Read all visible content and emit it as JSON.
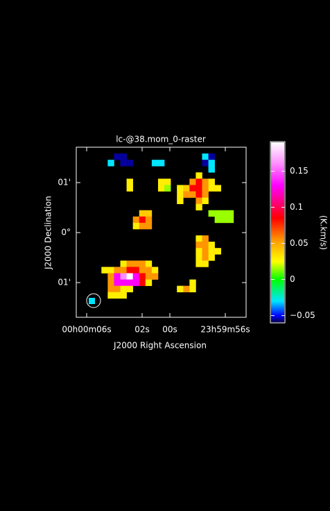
{
  "chart_data": {
    "type": "heatmap",
    "title": "lc-@38.mom_0-raster",
    "x_label": "J2000 Right Ascension",
    "y_label": "J2000 Declination",
    "xlim": [
      66.75,
      54.5
    ],
    "ylim": [
      -1.694,
      1.708
    ],
    "xticks": [
      {
        "value": 66,
        "label": "00h00m06s"
      },
      {
        "value": 62,
        "label": "02s"
      },
      {
        "value": 60,
        "label": "00s"
      },
      {
        "value": 56,
        "label": "23h59m56s"
      }
    ],
    "yticks": [
      {
        "value": 1,
        "label": "01'"
      },
      {
        "value": 0,
        "label": "0°"
      },
      {
        "value": -1,
        "label": "01'"
      }
    ],
    "z": [
      [
        null,
        null,
        null,
        null,
        null,
        null,
        null,
        null,
        null,
        null,
        null,
        null,
        null,
        null,
        null,
        null,
        null,
        null,
        null,
        null,
        null,
        null,
        null,
        null,
        null,
        null,
        null
      ],
      [
        null,
        null,
        null,
        null,
        null,
        null,
        -0.055,
        -0.055,
        null,
        null,
        null,
        null,
        null,
        null,
        null,
        null,
        null,
        null,
        null,
        null,
        -0.03,
        -0.055,
        null,
        null,
        null,
        null,
        null
      ],
      [
        null,
        null,
        null,
        null,
        null,
        -0.03,
        null,
        -0.055,
        -0.055,
        null,
        null,
        null,
        -0.03,
        -0.03,
        null,
        null,
        null,
        null,
        null,
        null,
        -0.055,
        -0.03,
        null,
        null,
        null,
        null,
        null
      ],
      [
        null,
        null,
        null,
        null,
        null,
        null,
        null,
        null,
        null,
        null,
        null,
        null,
        null,
        null,
        null,
        null,
        null,
        null,
        null,
        null,
        null,
        -0.03,
        null,
        null,
        null,
        null,
        null
      ],
      [
        null,
        null,
        null,
        null,
        null,
        null,
        null,
        null,
        null,
        null,
        null,
        null,
        null,
        null,
        null,
        null,
        null,
        null,
        null,
        0.03,
        null,
        null,
        null,
        null,
        null,
        null,
        null
      ],
      [
        null,
        null,
        null,
        null,
        null,
        null,
        null,
        null,
        0.03,
        null,
        null,
        null,
        null,
        0.03,
        0.03,
        null,
        null,
        null,
        0.055,
        0.085,
        0.055,
        0.03,
        null,
        null,
        null,
        null,
        null
      ],
      [
        null,
        null,
        null,
        null,
        null,
        null,
        null,
        null,
        0.03,
        null,
        null,
        null,
        null,
        0.03,
        0.015,
        null,
        0.03,
        0.04,
        0.085,
        0.085,
        0.055,
        0.03,
        0.03,
        null,
        null,
        null,
        null
      ],
      [
        null,
        null,
        null,
        null,
        null,
        null,
        null,
        null,
        null,
        null,
        null,
        null,
        null,
        null,
        null,
        null,
        0.03,
        0.055,
        0.055,
        0.085,
        0.055,
        null,
        null,
        null,
        null,
        null,
        null
      ],
      [
        null,
        null,
        null,
        null,
        null,
        null,
        null,
        null,
        null,
        null,
        null,
        null,
        null,
        null,
        null,
        null,
        0.03,
        null,
        null,
        0.055,
        0.03,
        null,
        null,
        null,
        null,
        null,
        null
      ],
      [
        null,
        null,
        null,
        null,
        null,
        null,
        null,
        null,
        null,
        null,
        null,
        null,
        null,
        null,
        null,
        null,
        null,
        null,
        null,
        0.03,
        null,
        null,
        null,
        null,
        null,
        null,
        null
      ],
      [
        null,
        null,
        null,
        null,
        null,
        null,
        null,
        null,
        null,
        null,
        0.04,
        0.04,
        null,
        null,
        null,
        null,
        null,
        null,
        null,
        null,
        null,
        0.015,
        0.015,
        0.015,
        0.015,
        null,
        null
      ],
      [
        null,
        null,
        null,
        null,
        null,
        null,
        null,
        null,
        null,
        0.055,
        0.085,
        0.055,
        null,
        null,
        null,
        null,
        null,
        null,
        null,
        null,
        null,
        null,
        0.015,
        0.015,
        0.015,
        null,
        null
      ],
      [
        null,
        null,
        null,
        null,
        null,
        null,
        null,
        null,
        null,
        0.03,
        0.055,
        0.055,
        null,
        null,
        null,
        null,
        null,
        null,
        null,
        null,
        null,
        null,
        null,
        null,
        null,
        null,
        null
      ],
      [
        null,
        null,
        null,
        null,
        null,
        null,
        null,
        null,
        null,
        null,
        null,
        null,
        null,
        null,
        null,
        null,
        null,
        null,
        null,
        null,
        null,
        null,
        null,
        null,
        null,
        null,
        null
      ],
      [
        null,
        null,
        null,
        null,
        null,
        null,
        null,
        null,
        null,
        null,
        null,
        null,
        null,
        null,
        null,
        null,
        null,
        null,
        null,
        0.03,
        0.055,
        null,
        null,
        null,
        null,
        null,
        null
      ],
      [
        null,
        null,
        null,
        null,
        null,
        null,
        null,
        null,
        null,
        null,
        null,
        null,
        null,
        null,
        null,
        null,
        null,
        null,
        null,
        0.055,
        0.055,
        0.03,
        null,
        null,
        null,
        null,
        null
      ],
      [
        null,
        null,
        null,
        null,
        null,
        null,
        null,
        null,
        null,
        null,
        null,
        null,
        null,
        null,
        null,
        null,
        null,
        null,
        null,
        0.03,
        0.055,
        0.03,
        0.03,
        null,
        null,
        null,
        null
      ],
      [
        null,
        null,
        null,
        null,
        null,
        null,
        null,
        null,
        null,
        null,
        null,
        null,
        null,
        null,
        null,
        null,
        null,
        null,
        null,
        0.03,
        0.055,
        0.03,
        null,
        null,
        null,
        null,
        null
      ],
      [
        null,
        null,
        null,
        null,
        null,
        null,
        null,
        0.03,
        0.055,
        0.055,
        0.055,
        0.03,
        null,
        null,
        null,
        null,
        null,
        null,
        null,
        0.03,
        0.03,
        null,
        null,
        null,
        null,
        null,
        null
      ],
      [
        null,
        null,
        null,
        null,
        0.03,
        0.03,
        0.055,
        0.055,
        0.085,
        0.085,
        0.055,
        0.055,
        0.03,
        null,
        null,
        null,
        null,
        null,
        null,
        null,
        null,
        null,
        null,
        null,
        null,
        null,
        null
      ],
      [
        null,
        null,
        null,
        null,
        null,
        0.055,
        0.13,
        0.16,
        0.19,
        0.13,
        0.085,
        0.055,
        0.055,
        null,
        null,
        null,
        null,
        null,
        null,
        null,
        null,
        null,
        null,
        null,
        null,
        null,
        null
      ],
      [
        null,
        null,
        null,
        null,
        null,
        0.055,
        0.13,
        0.13,
        0.13,
        0.13,
        0.085,
        0.03,
        null,
        null,
        null,
        null,
        null,
        null,
        0.03,
        null,
        null,
        null,
        null,
        null,
        null,
        null,
        null
      ],
      [
        null,
        null,
        null,
        null,
        null,
        0.055,
        0.055,
        0.03,
        0.03,
        null,
        null,
        null,
        null,
        null,
        null,
        null,
        0.03,
        0.055,
        0.03,
        null,
        null,
        null,
        null,
        null,
        null,
        null,
        null
      ],
      [
        null,
        null,
        null,
        null,
        null,
        0.03,
        0.03,
        0.03,
        null,
        null,
        null,
        null,
        null,
        null,
        null,
        null,
        null,
        null,
        null,
        null,
        null,
        null,
        null,
        null,
        null,
        null,
        null
      ],
      [
        null,
        null,
        null,
        null,
        null,
        null,
        null,
        null,
        null,
        null,
        null,
        null,
        null,
        null,
        null,
        null,
        null,
        null,
        null,
        null,
        null,
        null,
        null,
        null,
        null,
        null,
        null
      ],
      [
        null,
        null,
        null,
        null,
        null,
        null,
        null,
        null,
        null,
        null,
        null,
        null,
        null,
        null,
        null,
        null,
        null,
        null,
        null,
        null,
        null,
        null,
        null,
        null,
        null,
        null,
        null
      ],
      [
        null,
        null,
        null,
        null,
        null,
        null,
        null,
        null,
        null,
        null,
        null,
        null,
        null,
        null,
        null,
        null,
        null,
        null,
        null,
        null,
        null,
        null,
        null,
        null,
        null,
        null,
        null
      ]
    ],
    "colorbar": {
      "label": "(K.km/s)",
      "zlim": [
        -0.06,
        0.19
      ],
      "ticks": [
        {
          "value": -0.05,
          "label": "−0.05"
        },
        0,
        0.05,
        0.1,
        0.15
      ]
    }
  }
}
